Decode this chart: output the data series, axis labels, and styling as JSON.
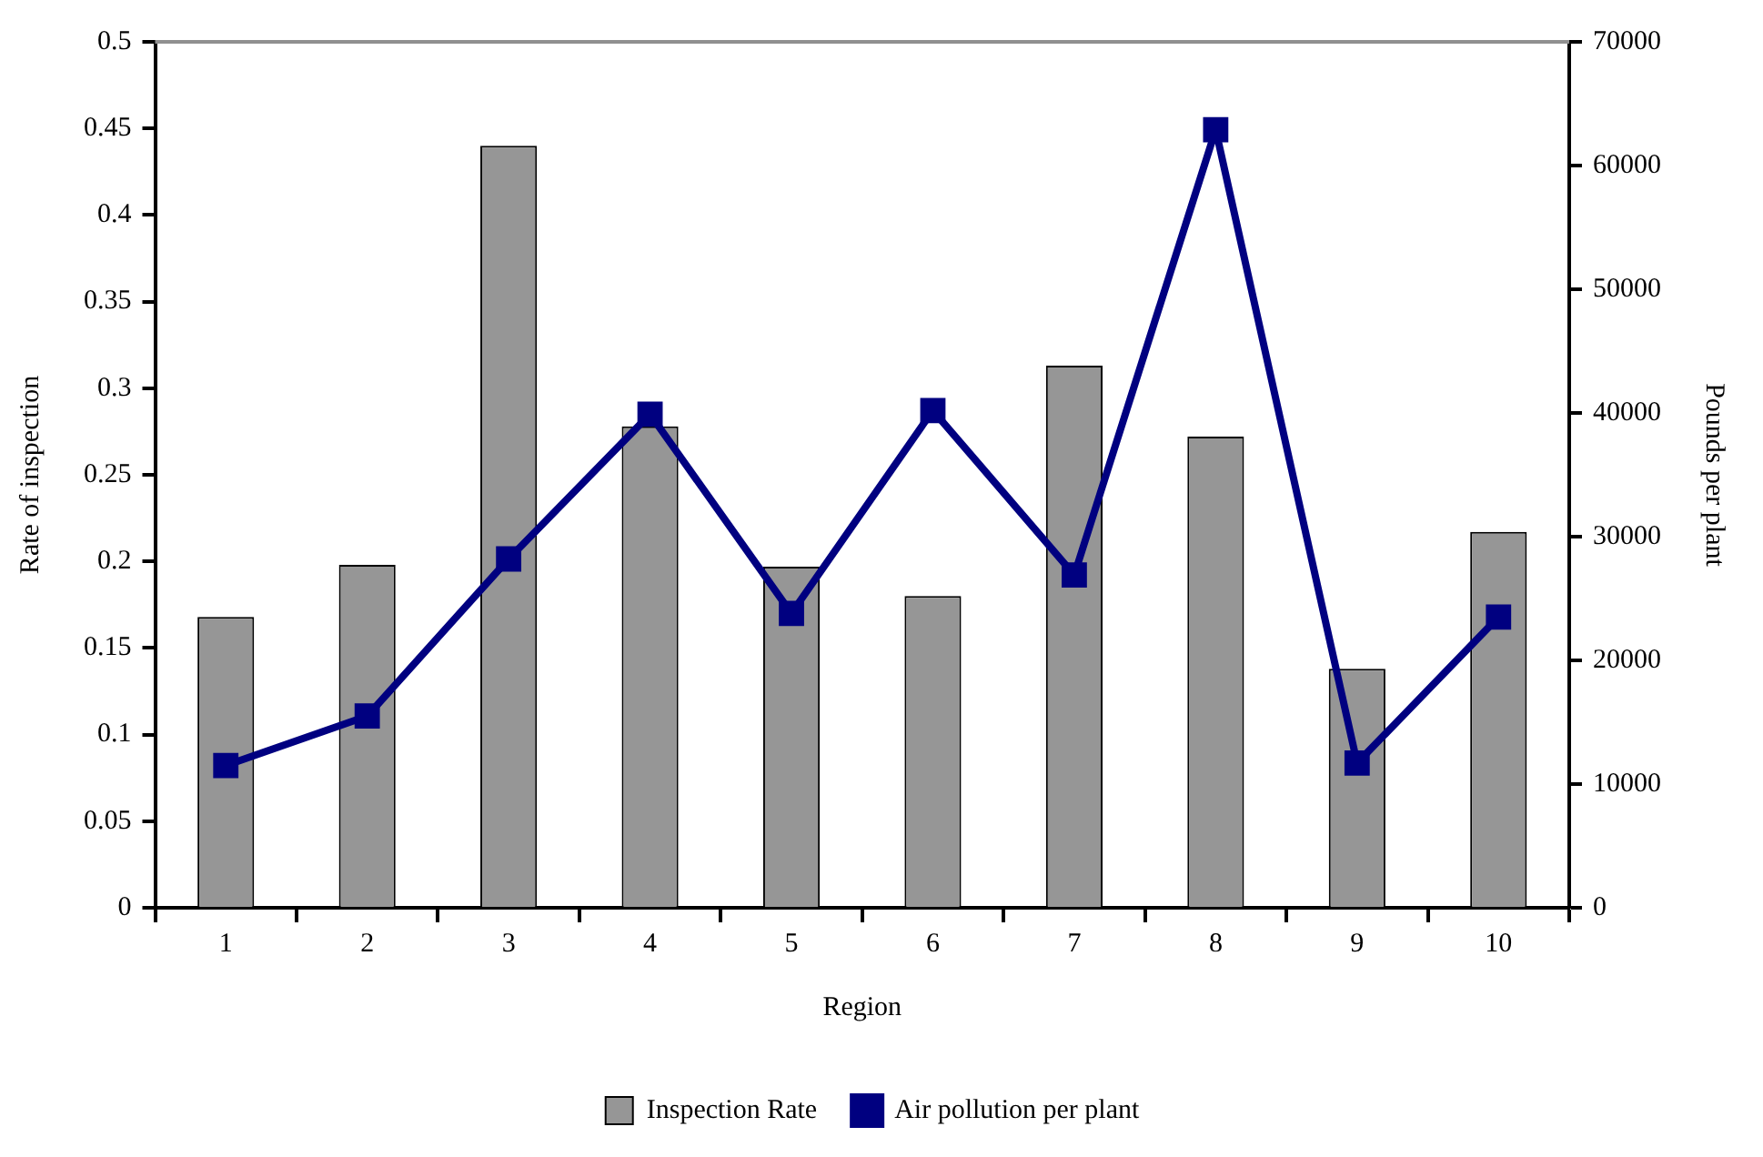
{
  "chart_data": {
    "type": "bar",
    "xlabel": "Region",
    "ylabel": "Rate of inspection",
    "y2label": "Pounds per plant",
    "categories": [
      "1",
      "2",
      "3",
      "4",
      "5",
      "6",
      "7",
      "8",
      "9",
      "10"
    ],
    "series": [
      {
        "name": "Inspection Rate",
        "color": "#969696",
        "values": [
          0.168,
          0.198,
          0.44,
          0.278,
          0.197,
          0.18,
          0.313,
          0.272,
          0.138,
          0.217
        ]
      },
      {
        "name": "Air pollution per plant",
        "type": "line",
        "axis": "y2",
        "color": "#000080",
        "marker": "square",
        "values": [
          11500,
          15500,
          28200,
          39900,
          23800,
          40200,
          26900,
          62900,
          11700,
          23500
        ]
      }
    ],
    "ylim": [
      0,
      0.5
    ],
    "yticks": [
      0,
      0.05,
      0.1,
      0.15,
      0.2,
      0.25,
      0.3,
      0.35,
      0.4,
      0.45,
      0.5
    ],
    "y2lim": [
      0,
      70000
    ],
    "y2ticks": [
      0,
      10000,
      20000,
      30000,
      40000,
      50000,
      60000,
      70000
    ],
    "grid": false,
    "legend": "bottom"
  }
}
